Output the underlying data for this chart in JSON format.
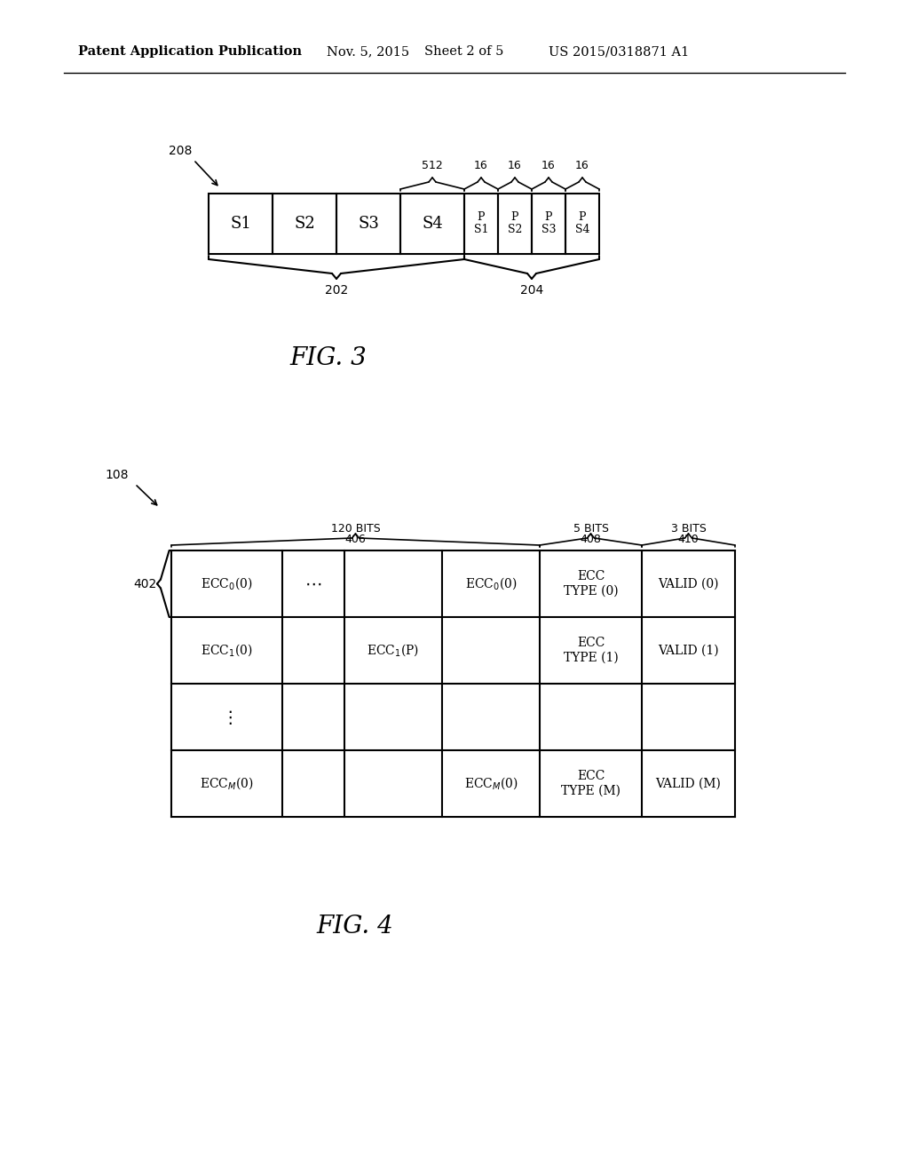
{
  "bg_color": "#ffffff",
  "header_text": "Patent Application Publication",
  "header_date": "Nov. 5, 2015",
  "header_sheet": "Sheet 2 of 5",
  "header_patent": "US 2015/0318871 A1",
  "fig3_label": "FIG. 3",
  "fig4_label": "FIG. 4",
  "fig3_ref": "208",
  "fig4_ref": "108",
  "fig3_boxes_s": [
    "S1",
    "S2",
    "S3",
    "S4"
  ],
  "fig3_boxes_p": [
    "P\nS1",
    "P\nS2",
    "P\nS3",
    "P\nS4"
  ],
  "fig3_brace_left_label": "202",
  "fig3_brace_right_label": "204",
  "fig3_bit_labels": [
    "512",
    "16",
    "16",
    "16",
    "16"
  ],
  "fig4_col_labels_text": [
    "120 BITS",
    "5 BITS",
    "3 BITS"
  ],
  "fig4_col_labels_num": [
    "406",
    "408",
    "410"
  ],
  "fig4_row_ref": "402"
}
